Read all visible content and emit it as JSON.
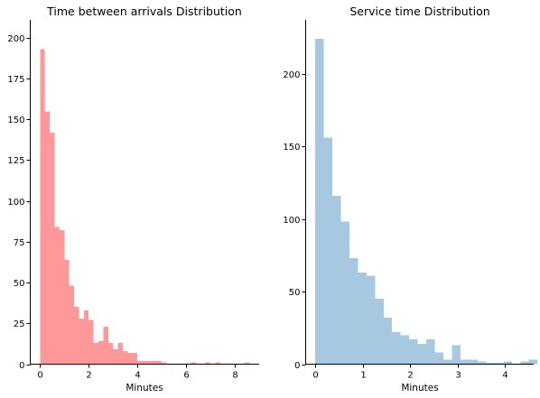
{
  "chart_data": [
    {
      "type": "bar",
      "title": "Time between arrivals Distribution",
      "xlabel": "Minutes",
      "ylabel": "",
      "color": "#ff9999",
      "xlim": [
        -0.4,
        9.0
      ],
      "ylim": [
        0,
        211
      ],
      "xticks": [
        0,
        2,
        4,
        6,
        8
      ],
      "yticks": [
        0,
        25,
        50,
        75,
        100,
        125,
        150,
        175,
        200
      ],
      "bin_start": 0,
      "bin_width": 0.2,
      "values": [
        193,
        155,
        142,
        84,
        82,
        64,
        48,
        35,
        28,
        33,
        27,
        13,
        14,
        23,
        13,
        9,
        13,
        8,
        7,
        7,
        2,
        2,
        2,
        2,
        2,
        1,
        0,
        0,
        0,
        0,
        0,
        1,
        0,
        0,
        1,
        0,
        1,
        0,
        0,
        0,
        0,
        0,
        1
      ]
    },
    {
      "type": "bar",
      "title": "Service time Distribution",
      "xlabel": "Minutes",
      "ylabel": "",
      "color": "#a6c8e0",
      "xlim": [
        -0.2,
        4.6
      ],
      "ylim": [
        0,
        237
      ],
      "xticks": [
        0,
        1,
        2,
        3,
        4
      ],
      "yticks": [
        0,
        50,
        100,
        150,
        200
      ],
      "bin_start": 0,
      "bin_width": 0.18,
      "values": [
        224,
        156,
        116,
        98,
        73,
        63,
        61,
        45,
        32,
        22,
        20,
        17,
        14,
        17,
        8,
        3,
        13,
        3,
        3,
        2,
        1,
        1,
        2,
        0,
        2,
        3
      ]
    }
  ]
}
